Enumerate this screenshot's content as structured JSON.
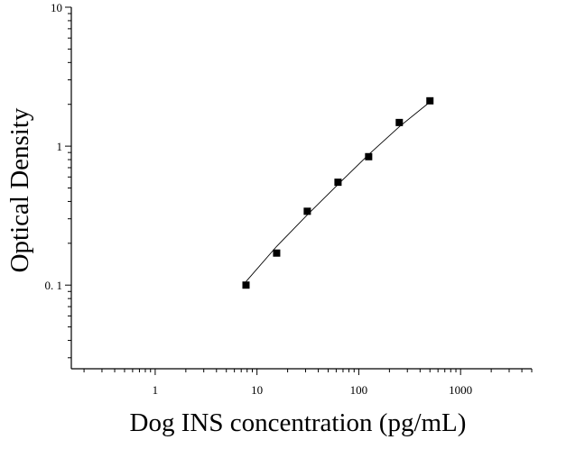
{
  "chart_data": {
    "type": "scatter",
    "title": "",
    "xlabel": "Dog INS concentration (pg/mL)",
    "ylabel": "Optical Density",
    "x_scale": "log",
    "y_scale": "log",
    "xlim": [
      0.15,
      5000
    ],
    "ylim": [
      0.025,
      10
    ],
    "grid": false,
    "x_ticks": [
      {
        "value": 1,
        "label": "1"
      },
      {
        "value": 10,
        "label": "10"
      },
      {
        "value": 100,
        "label": "100"
      },
      {
        "value": 1000,
        "label": "1000"
      }
    ],
    "y_ticks": [
      {
        "value": 0.1,
        "label": "0. 1"
      },
      {
        "value": 1,
        "label": "1"
      },
      {
        "value": 10,
        "label": "10"
      }
    ],
    "series": [
      {
        "marker": "square",
        "color": "#000000",
        "x": [
          7.8,
          15.6,
          31.2,
          62.5,
          125,
          250,
          500
        ],
        "y": [
          0.1,
          0.17,
          0.34,
          0.55,
          0.84,
          1.48,
          2.12
        ]
      }
    ],
    "fit_curve": {
      "color": "#000000",
      "x": [
        7.8,
        15.6,
        31.2,
        62.5,
        125,
        250,
        500
      ],
      "y": [
        0.106,
        0.19,
        0.32,
        0.53,
        0.87,
        1.38,
        2.08
      ]
    }
  }
}
